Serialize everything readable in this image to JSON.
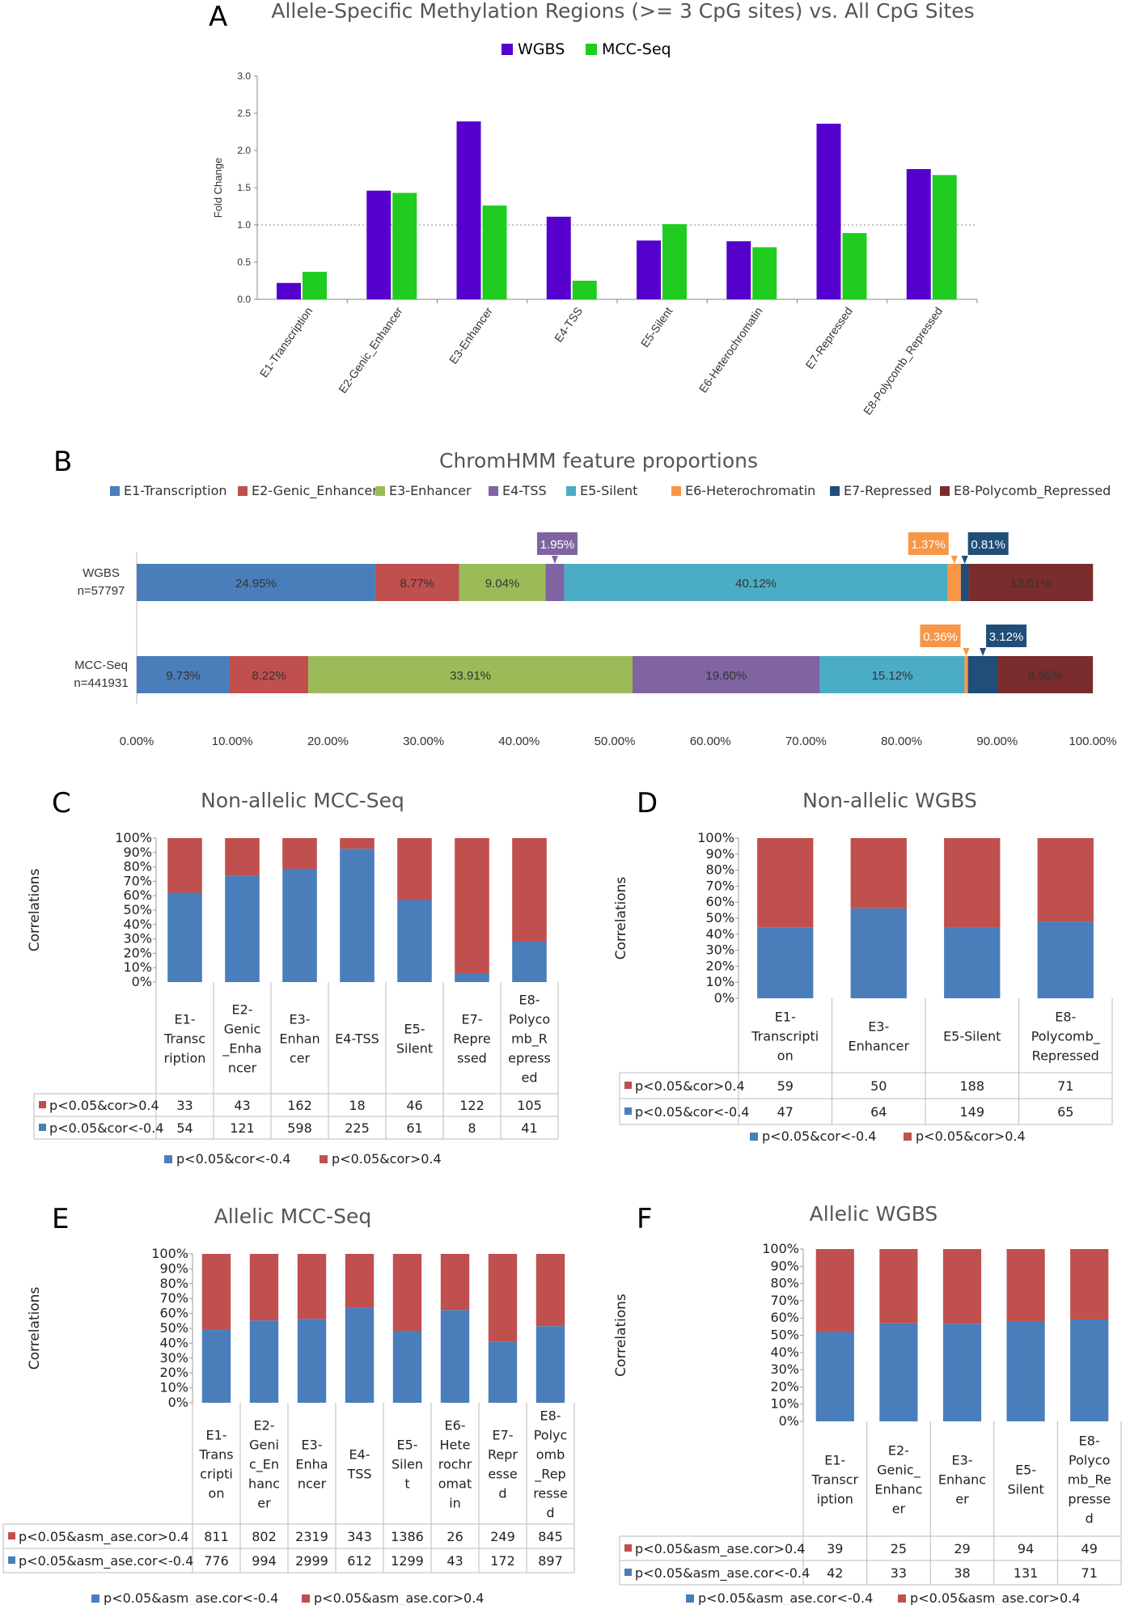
{
  "colors": {
    "wgbs": "#5500CC",
    "mcc": "#1FCC1F",
    "blue": "#4A7EBB",
    "red": "#C0504D",
    "chrom": [
      "#4A7EBB",
      "#C0504D",
      "#9BBB59",
      "#8064A2",
      "#4BACC6",
      "#F79646",
      "#1F4E79",
      "#7B2C2C"
    ]
  },
  "chart_data": [
    {
      "id": "A",
      "letter": "A",
      "type": "bar",
      "title": "Allele-Specific Methylation Regions (>= 3 CpG sites) vs. All CpG Sites",
      "ylabel": "Fold Change",
      "ylim": [
        0,
        3
      ],
      "yticks": [
        "0.0",
        "0.5",
        "1.0",
        "1.5",
        "2.0",
        "2.5",
        "3.0"
      ],
      "reference_line": 1.0,
      "categories": [
        "E1-Transcription",
        "E2-Genic_Enhancer",
        "E3-Enhancer",
        "E4-TSS",
        "E5-Silent",
        "E6-Heterochromatin",
        "E7-Repressed",
        "E8-Polycomb_Repressed"
      ],
      "series": [
        {
          "name": "WGBS",
          "values": [
            0.22,
            1.46,
            2.39,
            1.11,
            0.79,
            0.78,
            2.36,
            1.75
          ]
        },
        {
          "name": "MCC-Seq",
          "values": [
            0.37,
            1.43,
            1.26,
            0.25,
            1.01,
            0.7,
            0.89,
            1.67
          ]
        }
      ]
    },
    {
      "id": "B",
      "letter": "B",
      "type": "bar",
      "title": "ChromHMM feature proportions",
      "legend": [
        "E1-Transcription",
        "E2-Genic_Enhancer",
        "E3-Enhancer",
        "E4-TSS",
        "E5-Silent",
        "E6-Heterochromatin",
        "E7-Repressed",
        "E8-Polycomb_Repressed"
      ],
      "xticks": [
        "0.00%",
        "10.00%",
        "20.00%",
        "30.00%",
        "40.00%",
        "50.00%",
        "60.00%",
        "70.00%",
        "80.00%",
        "90.00%",
        "100.00%"
      ],
      "rows": [
        {
          "name": "WGBS",
          "n": "n=57797",
          "values": [
            24.95,
            8.77,
            9.04,
            1.95,
            40.12,
            1.37,
            0.81,
            13.01
          ],
          "labels": [
            "24.95%",
            "8.77%",
            "9.04%",
            "1.95%",
            "40.12%",
            "1.37%",
            "0.81%",
            "13.01%"
          ]
        },
        {
          "name": "MCC-Seq",
          "n": "n=441931",
          "values": [
            9.73,
            8.22,
            33.91,
            19.6,
            15.12,
            0.36,
            3.12,
            9.95
          ],
          "labels": [
            "9.73%",
            "8.22%",
            "33.91%",
            "19.60%",
            "15.12%",
            "0.36%",
            "3.12%",
            "9.95%"
          ]
        }
      ]
    },
    {
      "id": "C",
      "letter": "C",
      "type": "bar",
      "title": "Non-allelic MCC-Seq",
      "ylabel": "Correlations",
      "yticks": [
        "0%",
        "10%",
        "20%",
        "30%",
        "40%",
        "50%",
        "60%",
        "70%",
        "80%",
        "90%",
        "100%"
      ],
      "categories": [
        [
          "E1-",
          "Transc",
          "ription"
        ],
        [
          "E2-",
          "Genic",
          "_Enha",
          "ncer"
        ],
        [
          "E3-",
          "Enhan",
          "cer"
        ],
        [
          "E4-TSS"
        ],
        [
          "E5-",
          "Silent"
        ],
        [
          "E7-",
          "Repre",
          "ssed"
        ],
        [
          "E8-",
          "Polyco",
          "mb_R",
          "epress",
          "ed"
        ]
      ],
      "series": [
        {
          "name": "p<0.05&cor>0.4",
          "values": [
            33,
            43,
            162,
            18,
            46,
            122,
            105
          ]
        },
        {
          "name": "p<0.05&cor<-0.4",
          "values": [
            54,
            121,
            598,
            225,
            61,
            8,
            41
          ]
        }
      ],
      "legend": [
        "p<0.05&cor<-0.4",
        "p<0.05&cor>0.4"
      ]
    },
    {
      "id": "D",
      "letter": "D",
      "type": "bar",
      "title": "Non-allelic WGBS",
      "ylabel": "Correlations",
      "yticks": [
        "0%",
        "10%",
        "20%",
        "30%",
        "40%",
        "50%",
        "60%",
        "70%",
        "80%",
        "90%",
        "100%"
      ],
      "categories": [
        [
          "E1-",
          "Transcripti",
          "on"
        ],
        [
          "E3-",
          "Enhancer"
        ],
        [
          "E5-Silent"
        ],
        [
          "E8-",
          "Polycomb_",
          "Repressed"
        ]
      ],
      "series": [
        {
          "name": "p<0.05&cor>0.4",
          "values": [
            59,
            50,
            188,
            71
          ]
        },
        {
          "name": "p<0.05&cor<-0.4",
          "values": [
            47,
            64,
            149,
            65
          ]
        }
      ],
      "legend": [
        "p<0.05&cor<-0.4",
        "p<0.05&cor>0.4"
      ]
    },
    {
      "id": "E",
      "letter": "E",
      "type": "bar",
      "title": "Allelic MCC-Seq",
      "ylabel": "Correlations",
      "yticks": [
        "0%",
        "10%",
        "20%",
        "30%",
        "40%",
        "50%",
        "60%",
        "70%",
        "80%",
        "90%",
        "100%"
      ],
      "categories": [
        [
          "E1-",
          "Trans",
          "cripti",
          "on"
        ],
        [
          "E2-",
          "Geni",
          "c_En",
          "hanc",
          "er"
        ],
        [
          "E3-",
          "Enha",
          "ncer"
        ],
        [
          "E4-",
          "TSS"
        ],
        [
          "E5-",
          "Silen",
          "t"
        ],
        [
          "E6-",
          "Hete",
          "rochr",
          "omat",
          "in"
        ],
        [
          "E7-",
          "Repr",
          "esse",
          "d"
        ],
        [
          "E8-",
          "Polyc",
          "omb",
          "_Rep",
          "resse",
          "d"
        ]
      ],
      "series": [
        {
          "name": "p<0.05&asm_ase.cor>0.4",
          "values": [
            811,
            802,
            2319,
            343,
            1386,
            26,
            249,
            845
          ]
        },
        {
          "name": "p<0.05&asm_ase.cor<-0.4",
          "values": [
            776,
            994,
            2999,
            612,
            1299,
            43,
            172,
            897
          ]
        }
      ],
      "legend": [
        "p<0.05&asm_ase.cor<-0.4",
        "p<0.05&asm_ase.cor>0.4"
      ]
    },
    {
      "id": "F",
      "letter": "F",
      "type": "bar",
      "title": "Allelic WGBS",
      "ylabel": "Correlations",
      "yticks": [
        "0%",
        "10%",
        "20%",
        "30%",
        "40%",
        "50%",
        "60%",
        "70%",
        "80%",
        "90%",
        "100%"
      ],
      "categories": [
        [
          "E1-",
          "Transcr",
          "iption"
        ],
        [
          "E2-",
          "Genic_",
          "Enhanc",
          "er"
        ],
        [
          "E3-",
          "Enhanc",
          "er"
        ],
        [
          "E5-",
          "Silent"
        ],
        [
          "E8-",
          "Polyco",
          "mb_Re",
          "presse",
          "d"
        ]
      ],
      "series": [
        {
          "name": "p<0.05&asm_ase.cor>0.4",
          "values": [
            39,
            25,
            29,
            94,
            49
          ]
        },
        {
          "name": "p<0.05&asm_ase.cor<-0.4",
          "values": [
            42,
            33,
            38,
            131,
            71
          ]
        }
      ],
      "legend": [
        "p<0.05&asm_ase.cor<-0.4",
        "p<0.05&asm_ase.cor>0.4"
      ]
    }
  ]
}
